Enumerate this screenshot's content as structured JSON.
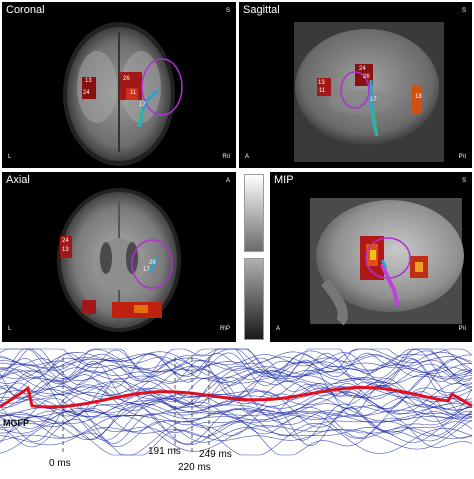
{
  "panels": {
    "coronal": {
      "title": "Coronal",
      "top_right": "S",
      "bottom_left": "L",
      "bottom_right": "R\\I",
      "labels": [
        "13",
        "26",
        "11",
        "24",
        "17"
      ]
    },
    "sagittal": {
      "title": "Sagittal",
      "top_right": "S",
      "bottom_left": "A",
      "bottom_right": "P\\I",
      "labels": [
        "24",
        "13",
        "26",
        "11",
        "17",
        "18"
      ]
    },
    "axial": {
      "title": "Axial",
      "top_right": "A",
      "bottom_left": "L",
      "bottom_right": "R\\P",
      "labels": [
        "24",
        "13",
        "26",
        "17"
      ]
    },
    "mip": {
      "title": "MIP",
      "top_right": "S",
      "bottom_left": "A",
      "bottom_right": "P\\I"
    }
  },
  "waveform": {
    "mgfp_label": "MGFP",
    "time_markers": [
      "0 ms",
      "191 ms",
      "220 ms",
      "249 ms"
    ],
    "colors": {
      "traces": "#1a2aa8",
      "mgfp": "#e01020"
    }
  }
}
